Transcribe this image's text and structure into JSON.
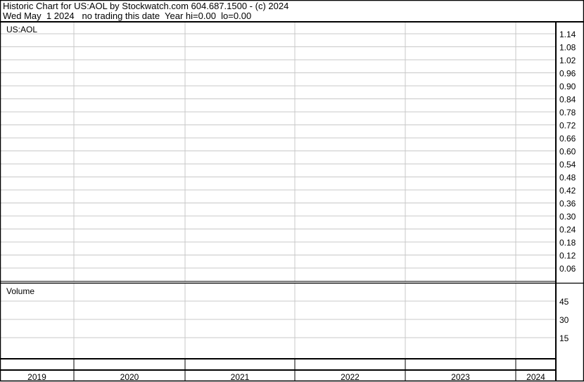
{
  "header": {
    "title": "Historic Chart for US:AOL by Stockwatch.com 604.687.1500 - (c) 2024",
    "subtitle": "Wed May  1 2024   no trading this date  Year hi=0.00  lo=0.00"
  },
  "chart_data": [
    {
      "type": "line",
      "title": "US:AOL",
      "series": [],
      "y_ticks": [
        "1.14",
        "1.08",
        "1.02",
        "0.96",
        "0.90",
        "0.84",
        "0.78",
        "0.72",
        "0.66",
        "0.60",
        "0.54",
        "0.48",
        "0.42",
        "0.36",
        "0.30",
        "0.24",
        "0.18",
        "0.12",
        "0.06"
      ],
      "ylim": [
        0.06,
        1.14
      ],
      "x_categories": [
        "2019",
        "2020",
        "2021",
        "2022",
        "2023",
        "2024"
      ],
      "grid": true,
      "colors": {
        "grid": "#c8c8c8",
        "border": "#000000"
      }
    },
    {
      "type": "bar",
      "title": "Volume",
      "series": [],
      "y_ticks": [
        "45",
        "30",
        "15"
      ],
      "x_categories": [
        "2019",
        "2020",
        "2021",
        "2022",
        "2023",
        "2024"
      ],
      "grid": true
    }
  ]
}
